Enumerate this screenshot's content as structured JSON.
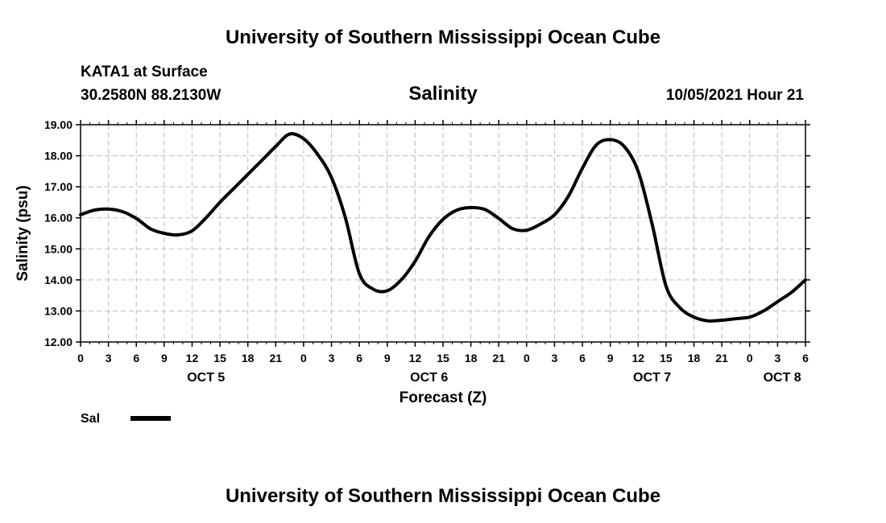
{
  "page": {
    "top_title": "University of Southern Mississippi Ocean Cube",
    "bottom_title": "University of Southern Mississippi Ocean Cube",
    "station": "KATA1 at Surface",
    "coords": "30.2580N  88.2130W",
    "variable": "Salinity",
    "datetime": "10/05/2021 Hour 21"
  },
  "chart_data": {
    "type": "line",
    "title": "Salinity",
    "xlabel": "Forecast (Z)",
    "ylabel": "Salinity (psu)",
    "ylim": [
      12.0,
      19.0
    ],
    "xlim": [
      0,
      78
    ],
    "y_ticks": [
      "12.00",
      "13.00",
      "14.00",
      "15.00",
      "16.00",
      "17.00",
      "18.00",
      "19.00"
    ],
    "x_ticks": [
      "0",
      "3",
      "6",
      "9",
      "12",
      "15",
      "18",
      "21",
      "0",
      "3",
      "6",
      "9",
      "12",
      "15",
      "18",
      "21",
      "0",
      "3",
      "6",
      "9",
      "12",
      "15",
      "18",
      "21",
      "0",
      "3",
      "6"
    ],
    "day_labels": [
      {
        "label": "OCT 5",
        "hour": 13.5
      },
      {
        "label": "OCT 6",
        "hour": 37.5
      },
      {
        "label": "OCT 7",
        "hour": 61.5
      },
      {
        "label": "OCT 8",
        "hour": 75.5
      }
    ],
    "grid": true,
    "legend": "bottom-left",
    "series": [
      {
        "name": "Sal",
        "color": "#000000",
        "x": [
          0,
          1.5,
          3,
          4.5,
          6,
          7.5,
          9,
          10.5,
          12,
          13.5,
          15,
          16.5,
          18,
          19.5,
          21,
          22.5,
          24,
          25.5,
          27,
          28.5,
          30,
          31.5,
          33,
          34.5,
          36,
          37.5,
          39,
          40.5,
          42,
          43.5,
          45,
          46.5,
          48,
          49.5,
          51,
          52.5,
          54,
          55.5,
          57,
          58.5,
          60,
          61.5,
          63,
          64.5,
          66,
          67.5,
          69,
          70.5,
          72,
          73.5,
          75,
          76.5,
          78
        ],
        "values": [
          16.1,
          16.25,
          16.28,
          16.2,
          15.98,
          15.65,
          15.5,
          15.45,
          15.58,
          16.0,
          16.5,
          16.95,
          17.4,
          17.85,
          18.3,
          18.7,
          18.55,
          18.05,
          17.3,
          16.0,
          14.2,
          13.7,
          13.65,
          14.0,
          14.6,
          15.4,
          15.95,
          16.25,
          16.33,
          16.27,
          15.98,
          15.65,
          15.6,
          15.8,
          16.1,
          16.7,
          17.6,
          18.35,
          18.52,
          18.3,
          17.5,
          15.8,
          13.8,
          13.1,
          12.8,
          12.68,
          12.7,
          12.75,
          12.8,
          13.0,
          13.3,
          13.6,
          14.0
        ]
      }
    ]
  }
}
